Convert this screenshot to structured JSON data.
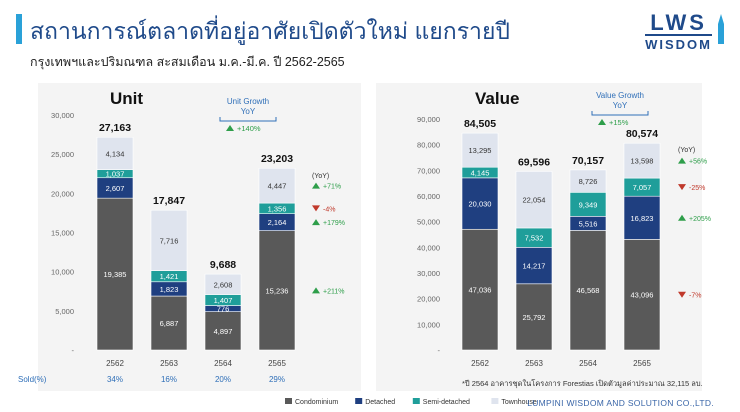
{
  "header": {
    "title": "สถานการณ์ตลาดที่อยู่อาศัยเปิดตัวใหม่ แยกรายปี",
    "subtitle": "กรุงเทพฯและปริมณฑล สะสมเดือน ม.ค.-มี.ค. ปี 2562-2565"
  },
  "logo": {
    "line1": "LWS",
    "line2": "WISDOM"
  },
  "footer": "LUMPINI WISDOM AND SOLUTION CO.,LTD.",
  "note": "*ปี 2564 อาคารชุดในโครงการ Forestias เปิดตัวมูลค่าประมาณ 32,115 ลบ.",
  "colors": {
    "Condominium": "#595959",
    "Detached": "#1f3f80",
    "Semi-detached": "#1f9e9a",
    "Townhouse": "#dfe4ee",
    "up": "#2e9e4a",
    "down": "#c0392b",
    "accent": "#2f6fb8"
  },
  "chart_data": [
    {
      "type": "bar",
      "stacked": true,
      "title": "Unit",
      "categories": [
        "2562",
        "2563",
        "2564",
        "2565"
      ],
      "ylim": [
        0,
        30000
      ],
      "yticks": [
        "30,000",
        "25,000",
        "20,000",
        "15,000",
        "10,000",
        "5,000",
        "-"
      ],
      "series": [
        {
          "name": "Condominium",
          "values": [
            19385,
            6887,
            4897,
            15236
          ],
          "labels": [
            "19,385",
            "6,887",
            "4,897",
            "15,236"
          ]
        },
        {
          "name": "Detached",
          "values": [
            2607,
            1823,
            776,
            2164
          ],
          "labels": [
            "2,607",
            "1,823",
            "776",
            "2,164"
          ]
        },
        {
          "name": "Semi-detached",
          "values": [
            1037,
            1421,
            1407,
            1356
          ],
          "labels": [
            "1,037",
            "1,421",
            "1,407",
            "1,356"
          ]
        },
        {
          "name": "Townhouse",
          "values": [
            4134,
            7716,
            2608,
            4447
          ],
          "labels": [
            "4,134",
            "7,716",
            "2,608",
            "4,447"
          ]
        }
      ],
      "totals": [
        "27,163",
        "17,847",
        "9,688",
        "23,203"
      ],
      "growth_title": "Unit Growth",
      "growth_yoy": "YoY",
      "growth_total": "+140%",
      "yoy_header": "(YoY)",
      "yoy": [
        {
          "series": "Townhouse",
          "text": "+71%",
          "dir": "up"
        },
        {
          "series": "Semi-detached",
          "text": "-4%",
          "dir": "down"
        },
        {
          "series": "Detached",
          "text": "+179%",
          "dir": "up"
        },
        {
          "series": "Condominium",
          "text": "+211%",
          "dir": "up"
        }
      ],
      "sold_label": "Sold(%)",
      "sold": [
        "34%",
        "16%",
        "20%",
        "29%"
      ]
    },
    {
      "type": "bar",
      "stacked": true,
      "title": "Value",
      "categories": [
        "2562",
        "2563",
        "2564",
        "2565"
      ],
      "ylim": [
        0,
        90000
      ],
      "yticks": [
        "90,000",
        "80,000",
        "70,000",
        "60,000",
        "50,000",
        "40,000",
        "30,000",
        "20,000",
        "10,000",
        "-"
      ],
      "series": [
        {
          "name": "Condominium",
          "values": [
            47036,
            25792,
            46568,
            43096
          ],
          "labels": [
            "47,036",
            "25,792",
            "46,568",
            "43,096"
          ]
        },
        {
          "name": "Detached",
          "values": [
            20030,
            14217,
            5516,
            16823
          ],
          "labels": [
            "20,030",
            "14,217",
            "5,516",
            "16,823"
          ]
        },
        {
          "name": "Semi-detached",
          "values": [
            4145,
            7532,
            9349,
            7057
          ],
          "labels": [
            "4,145",
            "7,532",
            "9,349",
            "7,057"
          ]
        },
        {
          "name": "Townhouse",
          "values": [
            13295,
            22054,
            8726,
            13598
          ],
          "labels": [
            "13,295",
            "22,054",
            "8,726",
            "13,598"
          ]
        }
      ],
      "totals": [
        "84,505",
        "69,596",
        "70,157",
        "80,574"
      ],
      "growth_title": "Value Growth",
      "growth_yoy": "YoY",
      "growth_total": "+15%",
      "yoy_header": "(YoY)",
      "yoy": [
        {
          "series": "Townhouse",
          "text": "+56%",
          "dir": "up"
        },
        {
          "series": "Semi-detached",
          "text": "-25%",
          "dir": "down"
        },
        {
          "series": "Detached",
          "text": "+205%",
          "dir": "up"
        },
        {
          "series": "Condominium",
          "text": "-7%",
          "dir": "down"
        }
      ]
    }
  ],
  "legend": [
    "Condominium",
    "Detached",
    "Semi-detached",
    "Townhouse"
  ]
}
